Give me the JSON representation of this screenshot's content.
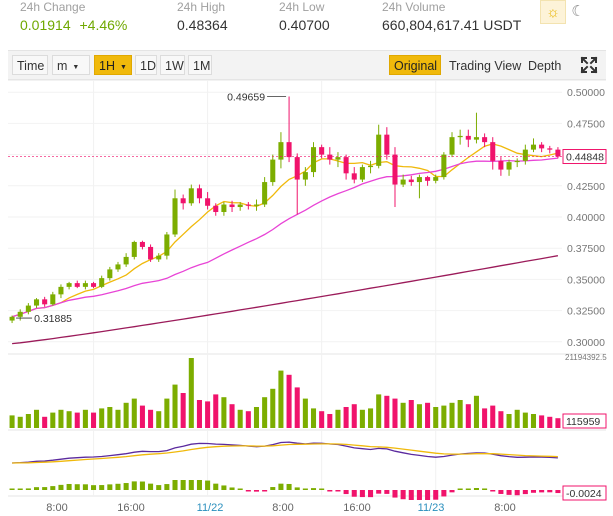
{
  "stats": [
    {
      "label": "24h Change",
      "value": "0.01914",
      "extra": "+4.46%"
    },
    {
      "label": "24h High",
      "value": "0.48364"
    },
    {
      "label": "24h Low",
      "value": "0.40700"
    },
    {
      "label": "24h Volume",
      "value": "660,804,617.41 USDT"
    }
  ],
  "theme": {
    "sun_icon": "sun-icon",
    "moon_icon": "moon-icon",
    "accent": "#f0b90b"
  },
  "toolbar": {
    "time_label": "Time",
    "minute_label": "m",
    "hour_label": "1H",
    "day_label": "1D",
    "week_label": "1W",
    "month_label": "1M",
    "original_label": "Original",
    "tradingview_label": "Trading View",
    "depth_label": "Depth",
    "fullscreen_icon": "fullscreen-icon"
  },
  "chart_data": {
    "type": "candlestick",
    "price_axis": [
      "0.50000",
      "0.47500",
      "0.45000",
      "0.42500",
      "0.40000",
      "0.37500",
      "0.35000",
      "0.32500",
      "0.30000"
    ],
    "price_range": [
      0.295,
      0.505
    ],
    "current_price": "0.44848",
    "high_annotation": "0.49659",
    "low_annotation": "0.31885",
    "volume_max_label": "21194392.5",
    "volume_current": "115959",
    "macd_current": "-0.0024",
    "time_labels": [
      "8:00",
      "16:00",
      "11/22",
      "8:00",
      "16:00",
      "11/23",
      "8:00"
    ],
    "colors": {
      "up": "#7cad00",
      "down": "#f0136b",
      "ma_fast": "#f0b90b",
      "ma_mid": "#e844d6",
      "ma_slow": "#9b1b5a",
      "dif": "#5b2a9e",
      "dea": "#f0b90b"
    },
    "candles": [
      [
        0.317,
        0.32,
        0.315,
        0.321
      ],
      [
        0.32,
        0.324,
        0.317,
        0.326
      ],
      [
        0.324,
        0.329,
        0.322,
        0.331
      ],
      [
        0.329,
        0.334,
        0.327,
        0.335
      ],
      [
        0.334,
        0.33,
        0.328,
        0.336
      ],
      [
        0.33,
        0.338,
        0.329,
        0.34
      ],
      [
        0.338,
        0.344,
        0.335,
        0.346
      ],
      [
        0.344,
        0.347,
        0.342,
        0.348
      ],
      [
        0.347,
        0.344,
        0.343,
        0.349
      ],
      [
        0.344,
        0.347,
        0.342,
        0.349
      ],
      [
        0.347,
        0.344,
        0.343,
        0.348
      ],
      [
        0.344,
        0.351,
        0.343,
        0.353
      ],
      [
        0.351,
        0.358,
        0.349,
        0.36
      ],
      [
        0.358,
        0.362,
        0.356,
        0.364
      ],
      [
        0.362,
        0.368,
        0.36,
        0.371
      ],
      [
        0.368,
        0.38,
        0.366,
        0.381
      ],
      [
        0.38,
        0.376,
        0.374,
        0.381
      ],
      [
        0.376,
        0.366,
        0.364,
        0.378
      ],
      [
        0.366,
        0.369,
        0.364,
        0.371
      ],
      [
        0.369,
        0.386,
        0.366,
        0.388
      ],
      [
        0.386,
        0.415,
        0.384,
        0.422
      ],
      [
        0.415,
        0.411,
        0.406,
        0.418
      ],
      [
        0.411,
        0.423,
        0.409,
        0.426
      ],
      [
        0.423,
        0.415,
        0.411,
        0.426
      ],
      [
        0.415,
        0.409,
        0.406,
        0.42
      ],
      [
        0.409,
        0.404,
        0.401,
        0.411
      ],
      [
        0.404,
        0.41,
        0.401,
        0.412
      ],
      [
        0.41,
        0.408,
        0.404,
        0.413
      ],
      [
        0.408,
        0.41,
        0.405,
        0.412
      ],
      [
        0.41,
        0.409,
        0.406,
        0.412
      ],
      [
        0.409,
        0.41,
        0.405,
        0.414
      ],
      [
        0.41,
        0.428,
        0.408,
        0.432
      ],
      [
        0.428,
        0.446,
        0.425,
        0.45
      ],
      [
        0.446,
        0.46,
        0.439,
        0.468
      ],
      [
        0.46,
        0.448,
        0.444,
        0.4966
      ],
      [
        0.448,
        0.43,
        0.402,
        0.451
      ],
      [
        0.43,
        0.436,
        0.425,
        0.44
      ],
      [
        0.436,
        0.456,
        0.432,
        0.46
      ],
      [
        0.456,
        0.45,
        0.447,
        0.458
      ],
      [
        0.45,
        0.446,
        0.442,
        0.456
      ],
      [
        0.446,
        0.448,
        0.44,
        0.452
      ],
      [
        0.448,
        0.435,
        0.43,
        0.45
      ],
      [
        0.435,
        0.43,
        0.427,
        0.44
      ],
      [
        0.43,
        0.44,
        0.428,
        0.442
      ],
      [
        0.44,
        0.441,
        0.435,
        0.445
      ],
      [
        0.441,
        0.466,
        0.439,
        0.474
      ],
      [
        0.466,
        0.45,
        0.446,
        0.472
      ],
      [
        0.45,
        0.426,
        0.408,
        0.456
      ],
      [
        0.426,
        0.43,
        0.424,
        0.434
      ],
      [
        0.43,
        0.428,
        0.425,
        0.433
      ],
      [
        0.428,
        0.432,
        0.415,
        0.434
      ],
      [
        0.432,
        0.429,
        0.425,
        0.433
      ],
      [
        0.429,
        0.432,
        0.427,
        0.434
      ],
      [
        0.432,
        0.45,
        0.43,
        0.452
      ],
      [
        0.45,
        0.464,
        0.448,
        0.468
      ],
      [
        0.464,
        0.465,
        0.458,
        0.47
      ],
      [
        0.465,
        0.462,
        0.456,
        0.47
      ],
      [
        0.462,
        0.464,
        0.459,
        0.4836
      ],
      [
        0.464,
        0.46,
        0.456,
        0.467
      ],
      [
        0.46,
        0.445,
        0.438,
        0.464
      ],
      [
        0.445,
        0.438,
        0.433,
        0.448
      ],
      [
        0.438,
        0.444,
        0.433,
        0.446
      ],
      [
        0.444,
        0.445,
        0.44,
        0.447
      ],
      [
        0.445,
        0.454,
        0.442,
        0.458
      ],
      [
        0.454,
        0.458,
        0.452,
        0.463
      ],
      [
        0.458,
        0.455,
        0.452,
        0.46
      ],
      [
        0.455,
        0.454,
        0.451,
        0.457
      ],
      [
        0.454,
        0.4485,
        0.447,
        0.456
      ]
    ],
    "volumes": [
      0.18,
      0.16,
      0.2,
      0.26,
      0.16,
      0.22,
      0.26,
      0.24,
      0.22,
      0.26,
      0.22,
      0.28,
      0.3,
      0.26,
      0.36,
      0.42,
      0.32,
      0.26,
      0.24,
      0.42,
      0.62,
      0.5,
      1.0,
      0.4,
      0.38,
      0.48,
      0.44,
      0.34,
      0.26,
      0.24,
      0.3,
      0.44,
      0.56,
      0.82,
      0.76,
      0.58,
      0.42,
      0.28,
      0.24,
      0.2,
      0.26,
      0.3,
      0.34,
      0.26,
      0.28,
      0.48,
      0.46,
      0.42,
      0.36,
      0.4,
      0.34,
      0.36,
      0.3,
      0.32,
      0.36,
      0.4,
      0.34,
      0.46,
      0.28,
      0.32,
      0.24,
      0.2,
      0.26,
      0.22,
      0.2,
      0.18,
      0.16,
      0.14
    ]
  }
}
